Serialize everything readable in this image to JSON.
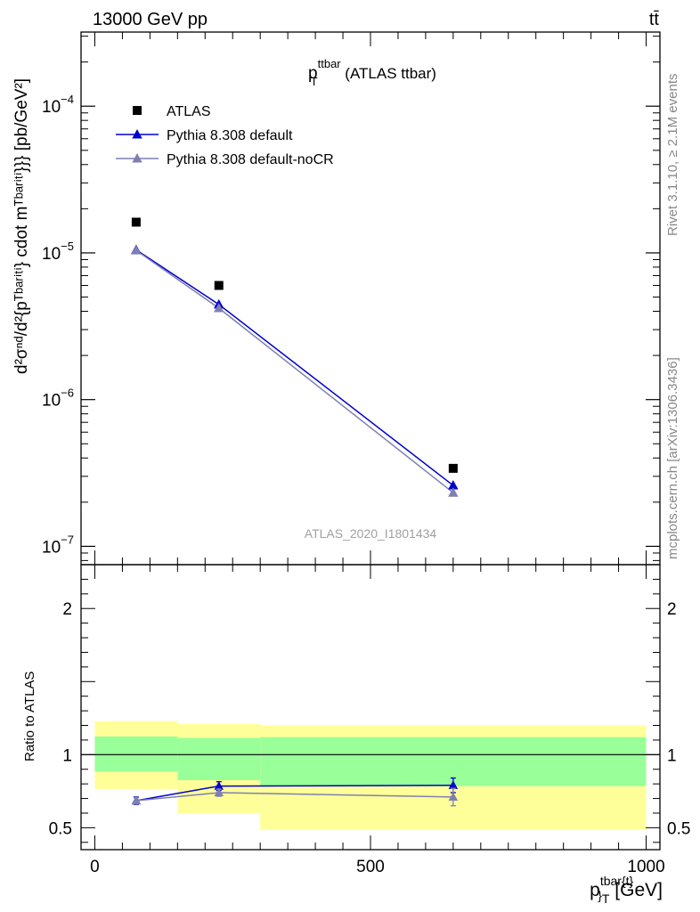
{
  "header": {
    "left": "13000 GeV pp",
    "right": "tt̄"
  },
  "side_labels": {
    "rivet": "Rivet 3.1.10, ≥ 2.1M events",
    "mcplots": "mcplots.cern.ch [arXiv:1306.3436]"
  },
  "chart_data": [
    {
      "type": "scatter",
      "title": {
        "main": "p",
        "sup": "ttbar",
        "sub": "T",
        "rest": " (ATLAS ttbar)"
      },
      "watermark": "ATLAS_2020_I1801434",
      "ylabel": "d²σⁿᵈ/d²{pᵀᵇᵃʳⁱᵗⁱ} cdot mᵀᵇᵃʳⁱᵗⁱ}}} [pb/GeV²]",
      "yscale": "log",
      "ylim": [
        7.5e-08,
        0.00032
      ],
      "yticks": [
        {
          "value": 1e-07,
          "label": "10",
          "exp": "−7"
        },
        {
          "value": 1e-06,
          "label": "10",
          "exp": "−6"
        },
        {
          "value": 1e-05,
          "label": "10",
          "exp": "−5"
        },
        {
          "value": 0.0001,
          "label": "10",
          "exp": "−4"
        }
      ],
      "xlim": [
        -25,
        1025
      ],
      "legend_placement": "top-left",
      "series": [
        {
          "name": "ATLAS",
          "color": "#000000",
          "marker": "square",
          "line": false,
          "points": [
            {
              "x": 75,
              "y": 1.62e-05
            },
            {
              "x": 225,
              "y": 6e-06
            },
            {
              "x": 650,
              "y": 3.4e-07
            }
          ]
        },
        {
          "name": "Pythia 8.308 default",
          "color": "#0000cc",
          "marker": "triangle",
          "line": true,
          "points": [
            {
              "x": 75,
              "y": 1.05e-05
            },
            {
              "x": 225,
              "y": 4.45e-06
            },
            {
              "x": 650,
              "y": 2.6e-07
            }
          ]
        },
        {
          "name": "Pythia 8.308 default-noCR",
          "color": "#7f7fb2",
          "marker": "triangle",
          "line": true,
          "points": [
            {
              "x": 75,
              "y": 1.04e-05
            },
            {
              "x": 225,
              "y": 4.2e-06
            },
            {
              "x": 650,
              "y": 2.32e-07
            }
          ]
        }
      ]
    },
    {
      "type": "scatter",
      "ylabel": "Ratio to ATLAS",
      "xlabel": {
        "main": "p",
        "sup": "tbar{t}",
        "sub": "}",
        "sub2": "T",
        "rest": " [GeV]"
      },
      "ylim": [
        0.35,
        2.3
      ],
      "xlim": [
        -25,
        1025
      ],
      "yticks": [
        {
          "value": 0.5,
          "label": "0.5"
        },
        {
          "value": 1,
          "label": "1"
        },
        {
          "value": 2,
          "label": "2"
        }
      ],
      "xticks": [
        {
          "value": 0,
          "label": "0"
        },
        {
          "value": 500,
          "label": "500"
        },
        {
          "value": 1000,
          "label": "1000"
        }
      ],
      "reference_line": 1,
      "bands": [
        {
          "x0": 0,
          "x1": 150,
          "yellow": [
            0.765,
            1.23
          ],
          "green": [
            0.885,
            1.125
          ]
        },
        {
          "x0": 150,
          "x1": 300,
          "yellow": [
            0.6,
            1.21
          ],
          "green": [
            0.825,
            1.115
          ]
        },
        {
          "x0": 300,
          "x1": 1000,
          "yellow": [
            0.485,
            1.2
          ],
          "green": [
            0.785,
            1.12
          ]
        }
      ],
      "series": [
        {
          "name": "Pythia 8.308 default",
          "color": "#0000cc",
          "points": [
            {
              "x": 75,
              "y": 0.685,
              "err": 0.025
            },
            {
              "x": 225,
              "y": 0.785,
              "err": 0.03
            },
            {
              "x": 650,
              "y": 0.79,
              "err": 0.05
            }
          ]
        },
        {
          "name": "Pythia 8.308 default-noCR",
          "color": "#7f7fb2",
          "points": [
            {
              "x": 75,
              "y": 0.685,
              "err": 0.02
            },
            {
              "x": 225,
              "y": 0.74,
              "err": 0.025
            },
            {
              "x": 650,
              "y": 0.71,
              "err": 0.06
            }
          ]
        }
      ]
    }
  ]
}
